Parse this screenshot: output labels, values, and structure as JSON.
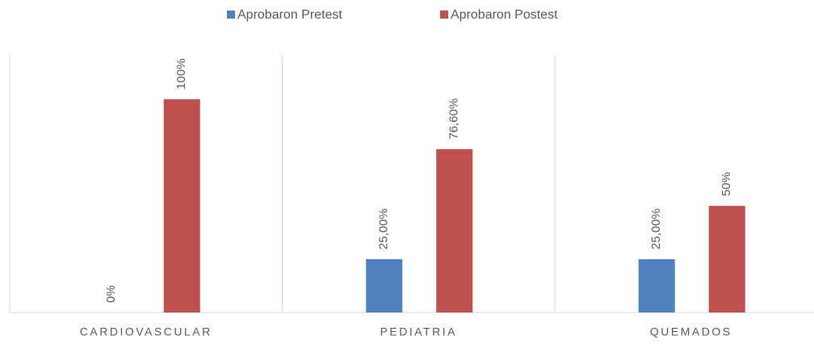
{
  "chart_data": {
    "type": "bar",
    "categories": [
      "CARDIOVASCULAR",
      "PEDIATRIA",
      "QUEMADOS"
    ],
    "series": [
      {
        "name": "Aprobaron Pretest",
        "color": "#4f81bd",
        "values": [
          0,
          25,
          25
        ],
        "value_labels": [
          "0%",
          "25,00%",
          "25,00%"
        ]
      },
      {
        "name": "Aprobaron Postest",
        "color": "#c0504d",
        "values": [
          100,
          76.6,
          50
        ],
        "value_labels": [
          "100%",
          "76,60%",
          "50%"
        ]
      }
    ],
    "ylim": [
      0,
      120
    ],
    "legend": "top"
  }
}
